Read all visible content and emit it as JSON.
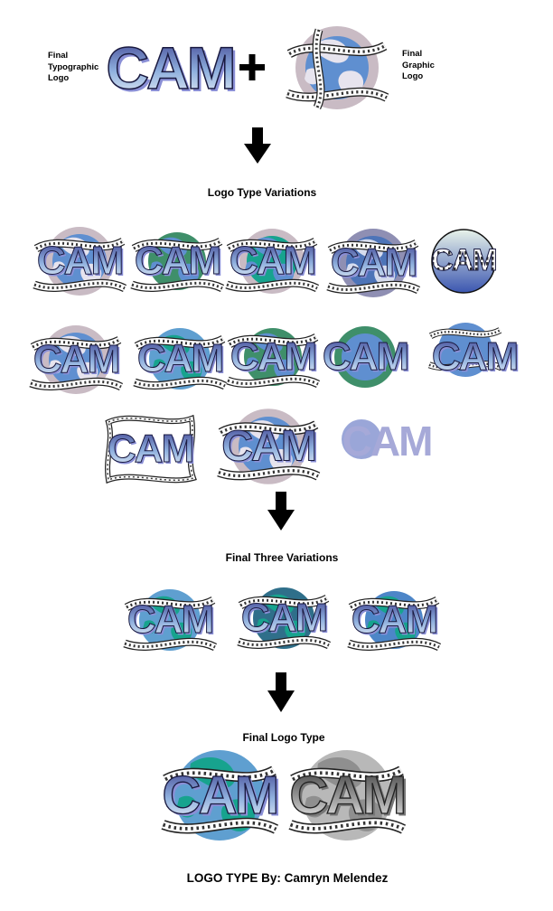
{
  "labels": {
    "typographic": [
      "Final",
      "Typographic",
      "Logo"
    ],
    "graphic": [
      "Final",
      "Graphic",
      "Logo"
    ],
    "logo_text": "CAM"
  },
  "sections": {
    "variations": "Logo Type Variations",
    "three": "Final Three Variations",
    "final": "Final Logo Type"
  },
  "credit": "LOGO TYPE By: Camryn Melendez",
  "colors": {
    "lavender": "#c9bbc4",
    "globe_blue": "#5f8fd0",
    "land_white": "#eef0f8",
    "teal": "#17a38e",
    "green": "#3f8f6a",
    "letter_top": "#3d3f8f",
    "letter_bottom": "#e7f0f7",
    "shadow": "#8a8fd6",
    "gray": "#8f8f8f"
  },
  "icons": [
    "plus-icon",
    "down-arrow-icon",
    "film-strip-icon",
    "globe-icon"
  ]
}
